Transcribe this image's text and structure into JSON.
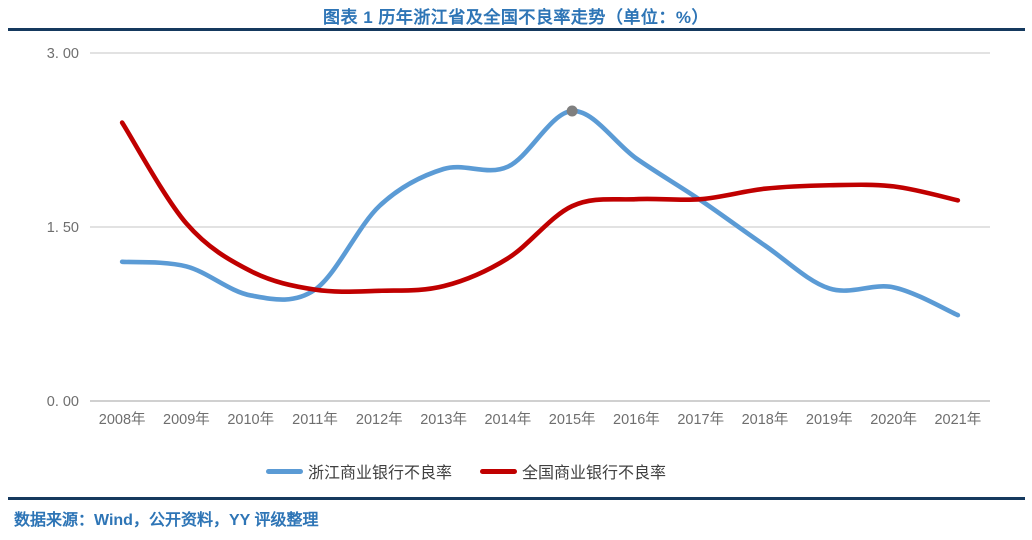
{
  "header": {
    "title": "图表 1 历年浙江省及全国不良率走势（单位：%）"
  },
  "footer": {
    "source": "数据来源：Wind，公开资料，YY 评级整理"
  },
  "colors": {
    "title_blue": "#2E75B6",
    "source_blue": "#2E75B6",
    "rule_navy": "#15395E",
    "zhejiang_blue": "#5B9BD5",
    "national_red": "#C00000",
    "marker_gray": "#7F7F7F",
    "gridline": "#D9D9D9",
    "axis_line": "#C0C0C0",
    "tick_text": "#6E6E6E",
    "legend_text": "#404040"
  },
  "chart_data": {
    "type": "line",
    "title": "图表 1 历年浙江省及全国不良率走势（单位：%）",
    "unit": "%",
    "smooth": true,
    "grid": "horizontal",
    "legend_position": "bottom",
    "categories": [
      "2008年",
      "2009年",
      "2010年",
      "2011年",
      "2012年",
      "2013年",
      "2014年",
      "2015年",
      "2016年",
      "2017年",
      "2018年",
      "2019年",
      "2020年",
      "2021年"
    ],
    "series": [
      {
        "name": "浙江商业银行不良率",
        "color": "#5B9BD5",
        "values": [
          1.2,
          1.16,
          0.91,
          0.96,
          1.68,
          2.0,
          2.02,
          2.5,
          2.09,
          1.73,
          1.34,
          0.97,
          0.98,
          0.74
        ],
        "marker": {
          "category": "2015年",
          "index": 7,
          "value": 2.5,
          "color": "#7F7F7F"
        }
      },
      {
        "name": "全国商业银行不良率",
        "color": "#C00000",
        "values": [
          2.4,
          1.53,
          1.12,
          0.96,
          0.95,
          0.99,
          1.23,
          1.68,
          1.74,
          1.74,
          1.83,
          1.86,
          1.85,
          1.73
        ]
      }
    ],
    "ylim": [
      0,
      3
    ],
    "yticks": [
      {
        "value": 0.0,
        "label": "0. 00"
      },
      {
        "value": 1.5,
        "label": "1. 50"
      },
      {
        "value": 3.0,
        "label": "3. 00"
      }
    ]
  }
}
